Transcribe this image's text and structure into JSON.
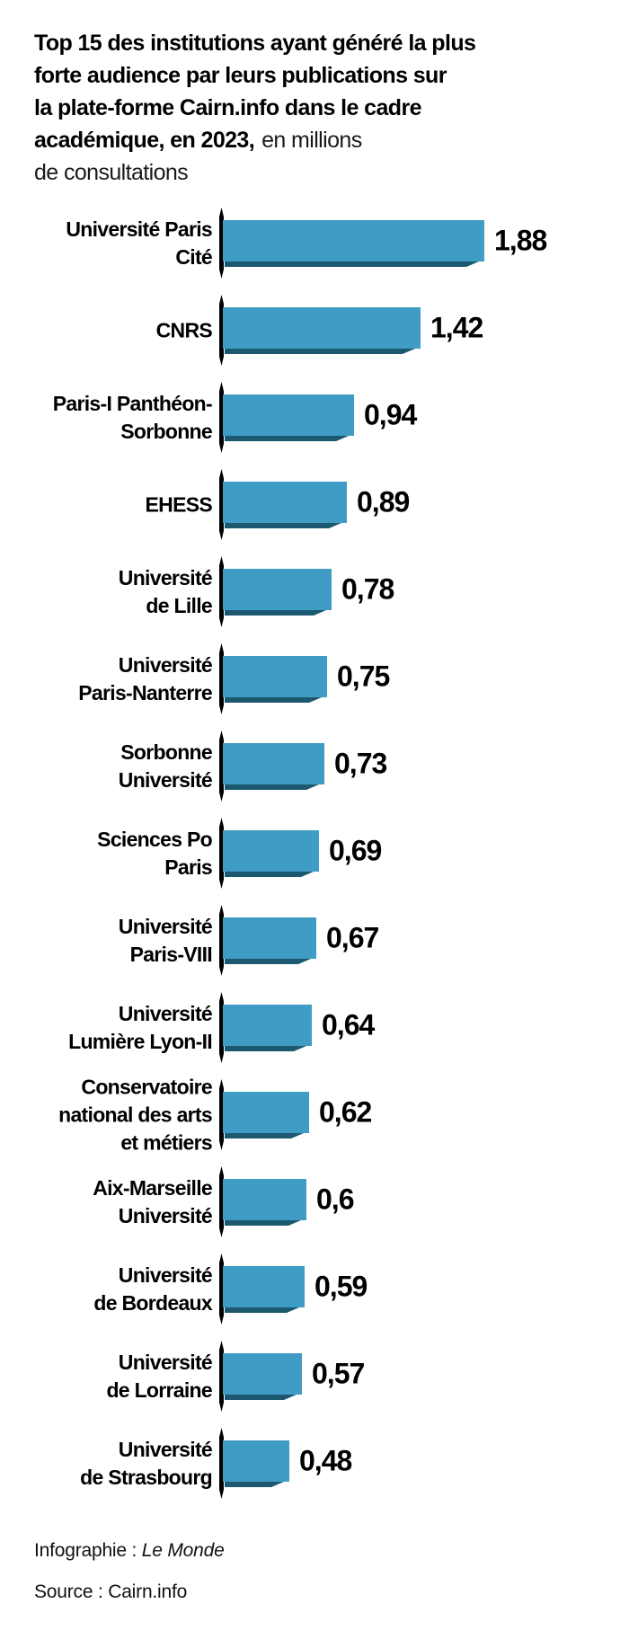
{
  "title": {
    "bold_lines": [
      "Top 15 des institutions ayant généré la plus",
      "forte audience par leurs publications sur",
      "la plate-forme Cairn.info dans le cadre",
      "académique, en 2023,"
    ],
    "normal_inline": "en millions",
    "normal_tail": "de consultations"
  },
  "footer": {
    "credit_prefix": "Infographie : ",
    "credit_name": "Le Monde",
    "source": "Source : Cairn.info"
  },
  "chart_data": {
    "type": "bar",
    "orientation": "horizontal",
    "title": "Top 15 des institutions ayant généré la plus forte audience par leurs publications sur la plate-forme Cairn.info dans le cadre académique, en 2023, en millions de consultations",
    "unit": "millions de consultations",
    "categories": [
      "Université Paris\nCité",
      "CNRS",
      "Paris-I Panthéon-\nSorbonne",
      "EHESS",
      "Université\nde Lille",
      "Université\nParis-Nanterre",
      "Sorbonne\nUniversité",
      "Sciences Po\nParis",
      "Université\nParis-VIII",
      "Université\nLumière Lyon-II",
      "Conservatoire\nnational des arts\net métiers",
      "Aix-Marseille\nUniversité",
      "Université\nde Bordeaux",
      "Université\nde Lorraine",
      "Université\nde Strasbourg"
    ],
    "values": [
      1.88,
      1.42,
      0.94,
      0.89,
      0.78,
      0.75,
      0.73,
      0.69,
      0.67,
      0.64,
      0.62,
      0.6,
      0.59,
      0.57,
      0.48
    ],
    "value_labels": [
      "1,88",
      "1,42",
      "0,94",
      "0,89",
      "0,78",
      "0,75",
      "0,73",
      "0,69",
      "0,67",
      "0,64",
      "0,62",
      "0,6",
      "0,59",
      "0,57",
      "0,48"
    ],
    "xlim": [
      0,
      2
    ],
    "grid": false,
    "legend": false,
    "bar_color": "#3F9CC4",
    "bar_shadow_color": "#1C5971",
    "axis_tick_color": "#000000",
    "source": "Cairn.info",
    "credit": "Infographie : Le Monde"
  }
}
